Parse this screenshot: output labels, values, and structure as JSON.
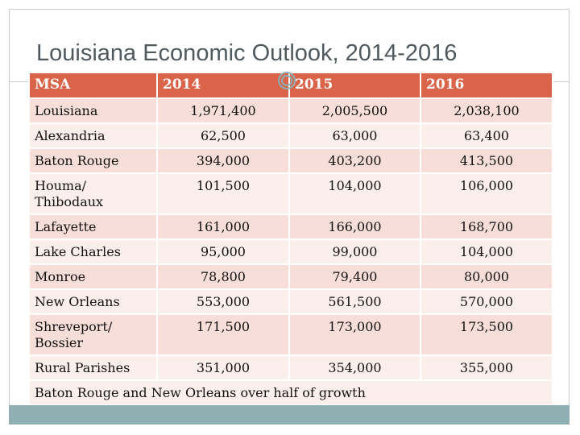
{
  "slide": {
    "title": "Louisiana Economic Outlook, 2014-2016",
    "colors": {
      "header": "#d9644a",
      "row_odd": "#f7ded9",
      "row_even": "#fbefec",
      "bottom_bar": "#8fafb2"
    }
  },
  "table": {
    "headers": [
      "MSA",
      "2014",
      "2015",
      "2016"
    ],
    "rows": [
      {
        "msa": "Louisiana",
        "y2014": "1,971,400",
        "y2015": "2,005,500",
        "y2016": "2,038,100"
      },
      {
        "msa": "Alexandria",
        "y2014": "62,500",
        "y2015": "63,000",
        "y2016": "63,400"
      },
      {
        "msa": "Baton Rouge",
        "y2014": "394,000",
        "y2015": "403,200",
        "y2016": "413,500"
      },
      {
        "msa": "Houma/ Thibodaux",
        "y2014": "101,500",
        "y2015": "104,000",
        "y2016": "106,000"
      },
      {
        "msa": "Lafayette",
        "y2014": "161,000",
        "y2015": "166,000",
        "y2016": "168,700"
      },
      {
        "msa": "Lake Charles",
        "y2014": "95,000",
        "y2015": "99,000",
        "y2016": "104,000"
      },
      {
        "msa": "Monroe",
        "y2014": "78,800",
        "y2015": "79,400",
        "y2016": "80,000"
      },
      {
        "msa": "New Orleans",
        "y2014": "553,000",
        "y2015": "561,500",
        "y2016": "570,000"
      },
      {
        "msa": "Shreveport/ Bossier",
        "y2014": "171,500",
        "y2015": "173,000",
        "y2016": "173,500"
      },
      {
        "msa": "Rural Parishes",
        "y2014": "351,000",
        "y2015": "354,000",
        "y2016": "355,000"
      }
    ],
    "footer": "Baton Rouge and New Orleans over half of growth"
  }
}
